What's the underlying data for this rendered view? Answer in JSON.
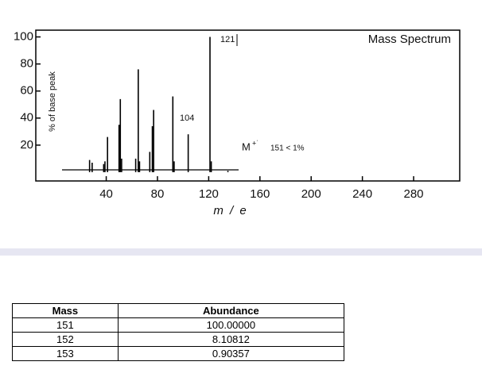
{
  "chart_data": {
    "type": "stick",
    "title": "Mass Spectrum",
    "x_label": "m / e",
    "y_label": "% of base peak",
    "annotations": [
      "121",
      "104",
      "M",
      "+˙",
      "151 < 1%"
    ],
    "x": [
      27,
      29,
      38,
      39,
      41,
      50,
      51,
      52,
      63,
      65,
      66,
      74,
      76,
      77,
      92,
      93,
      104,
      121,
      122,
      135
    ],
    "values": [
      9,
      7,
      6,
      8,
      26,
      35,
      54,
      10,
      10,
      76,
      8,
      15,
      34,
      46,
      56,
      8,
      28,
      100,
      8,
      1
    ],
    "color": "#000000",
    "xlim": [
      -15,
      316
    ],
    "ylim": [
      -6.5,
      105
    ],
    "xticks": [
      40,
      80,
      120,
      160,
      200,
      240,
      280
    ],
    "yticks": [
      20,
      40,
      60,
      80,
      100
    ]
  },
  "table": {
    "header": [
      "Mass",
      "Abundance"
    ],
    "rows": [
      [
        "151",
        "100.00000"
      ],
      [
        "152",
        "8.10812"
      ],
      [
        "153",
        "0.90357"
      ]
    ]
  }
}
